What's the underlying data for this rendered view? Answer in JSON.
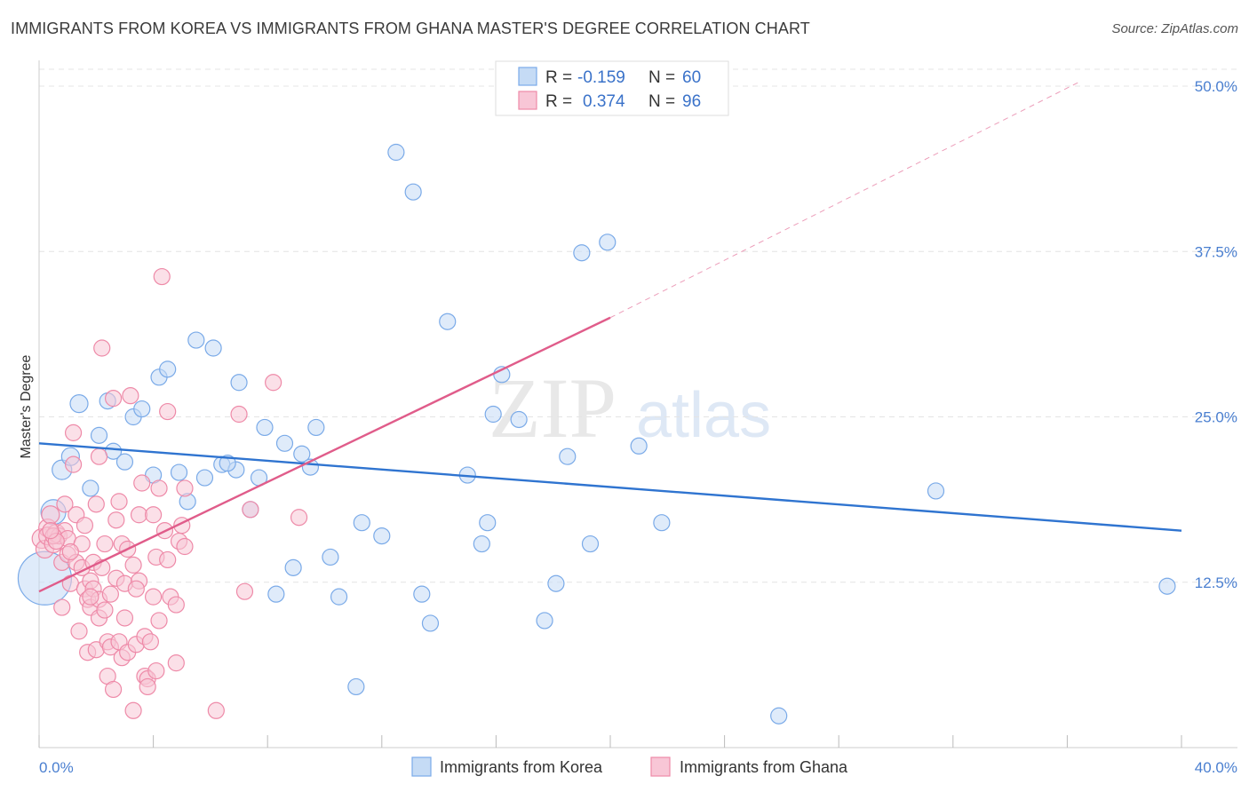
{
  "chart_data": {
    "type": "scatter",
    "title": "IMMIGRANTS FROM KOREA VS IMMIGRANTS FROM GHANA MASTER'S DEGREE CORRELATION CHART",
    "source": "Source: ZipAtlas.com",
    "xlabel": "",
    "ylabel": "Master's Degree",
    "xlim": [
      0,
      40
    ],
    "ylim": [
      0,
      50
    ],
    "x_tick_labels": [
      "0.0%",
      "40.0%"
    ],
    "y_ticks": [
      12.5,
      25.0,
      37.5,
      50.0
    ],
    "y_tick_labels": [
      "12.5%",
      "25.0%",
      "37.5%",
      "50.0%"
    ],
    "grid": true,
    "watermark": {
      "zip": "ZIP",
      "atlas": "atlas"
    },
    "legend": {
      "r_label": "R =",
      "n_label": "N =",
      "entries": [
        {
          "r": "-0.159",
          "n": "60"
        },
        {
          "r": "0.374",
          "n": "96"
        }
      ]
    },
    "series": [
      {
        "name": "Immigrants from Korea",
        "color": "#7aaae8",
        "fill": "#c5dbf5",
        "line_color": "#2f74d0",
        "trend": {
          "x0": 0,
          "y0": 23.0,
          "x1": 40,
          "y1": 16.4
        },
        "points": [
          [
            0.2,
            12.8,
            30
          ],
          [
            0.5,
            17.8,
            14
          ],
          [
            0.8,
            21.0,
            11
          ],
          [
            1.1,
            22.0,
            10
          ],
          [
            1.4,
            26.0,
            10
          ],
          [
            1.8,
            19.6,
            9
          ],
          [
            2.1,
            23.6,
            9
          ],
          [
            2.4,
            26.2,
            9
          ],
          [
            2.6,
            22.4,
            9
          ],
          [
            3.0,
            21.6,
            9
          ],
          [
            3.3,
            25.0,
            9
          ],
          [
            3.6,
            25.6,
            9
          ],
          [
            4.0,
            20.6,
            9
          ],
          [
            4.2,
            28.0,
            9
          ],
          [
            4.5,
            28.6,
            9
          ],
          [
            4.9,
            20.8,
            9
          ],
          [
            5.2,
            18.6,
            9
          ],
          [
            5.5,
            30.8,
            9
          ],
          [
            5.8,
            20.4,
            9
          ],
          [
            6.1,
            30.2,
            9
          ],
          [
            6.4,
            21.4,
            9
          ],
          [
            6.9,
            21.0,
            9
          ],
          [
            7.0,
            27.6,
            9
          ],
          [
            7.4,
            18.0,
            9
          ],
          [
            7.7,
            20.4,
            9
          ],
          [
            7.9,
            24.2,
            9
          ],
          [
            8.3,
            11.6,
            9
          ],
          [
            8.6,
            23.0,
            9
          ],
          [
            8.9,
            13.6,
            9
          ],
          [
            9.2,
            22.2,
            9
          ],
          [
            9.5,
            21.2,
            9
          ],
          [
            9.7,
            24.2,
            9
          ],
          [
            10.2,
            14.4,
            9
          ],
          [
            10.5,
            11.4,
            9
          ],
          [
            11.1,
            4.6,
            9
          ],
          [
            11.3,
            17.0,
            9
          ],
          [
            12.0,
            16.0,
            9
          ],
          [
            12.5,
            45.0,
            9
          ],
          [
            13.1,
            42.0,
            9
          ],
          [
            13.4,
            11.6,
            9
          ],
          [
            13.7,
            9.4,
            9
          ],
          [
            14.3,
            32.2,
            9
          ],
          [
            15.0,
            20.6,
            9
          ],
          [
            15.5,
            15.4,
            9
          ],
          [
            15.7,
            17.0,
            9
          ],
          [
            15.9,
            25.2,
            9
          ],
          [
            16.2,
            28.2,
            9
          ],
          [
            16.8,
            24.8,
            9
          ],
          [
            17.7,
            9.6,
            9
          ],
          [
            18.1,
            12.4,
            9
          ],
          [
            18.5,
            22.0,
            9
          ],
          [
            19.0,
            37.4,
            9
          ],
          [
            19.3,
            15.4,
            9
          ],
          [
            19.9,
            38.2,
            9
          ],
          [
            21.0,
            22.8,
            9
          ],
          [
            21.8,
            17.0,
            9
          ],
          [
            25.9,
            2.4,
            9
          ],
          [
            31.4,
            19.4,
            9
          ],
          [
            39.5,
            12.2,
            9
          ],
          [
            6.6,
            21.5,
            9
          ]
        ]
      },
      {
        "name": "Immigrants from Ghana",
        "color": "#ee8aa8",
        "fill": "#f8c6d6",
        "line_color": "#e05c8a",
        "trend": {
          "x0": 0,
          "y0": 11.8,
          "x1": 20,
          "y1": 32.5
        },
        "trend_dashed": {
          "x0": 20,
          "y0": 32.5,
          "x1": 36.5,
          "y1": 50.4
        },
        "points": [
          [
            0.1,
            15.8,
            11
          ],
          [
            0.2,
            15.0,
            10
          ],
          [
            0.3,
            16.6,
            10
          ],
          [
            0.3,
            16.0,
            10
          ],
          [
            0.4,
            17.6,
            10
          ],
          [
            0.5,
            15.4,
            10
          ],
          [
            0.6,
            16.2,
            10
          ],
          [
            0.7,
            16.0,
            9
          ],
          [
            0.8,
            14.0,
            9
          ],
          [
            0.8,
            10.6,
            9
          ],
          [
            0.9,
            16.4,
            9
          ],
          [
            0.9,
            18.4,
            9
          ],
          [
            1.0,
            15.8,
            9
          ],
          [
            1.0,
            14.6,
            9
          ],
          [
            1.1,
            12.4,
            9
          ],
          [
            1.2,
            21.4,
            9
          ],
          [
            1.2,
            23.8,
            9
          ],
          [
            1.3,
            17.6,
            9
          ],
          [
            1.3,
            14.0,
            9
          ],
          [
            1.4,
            8.8,
            9
          ],
          [
            1.5,
            15.4,
            9
          ],
          [
            1.5,
            13.6,
            9
          ],
          [
            1.6,
            16.8,
            9
          ],
          [
            1.6,
            12.0,
            9
          ],
          [
            1.7,
            11.2,
            9
          ],
          [
            1.7,
            7.2,
            9
          ],
          [
            1.8,
            12.6,
            9
          ],
          [
            1.8,
            10.6,
            9
          ],
          [
            1.9,
            14.0,
            9
          ],
          [
            1.9,
            12.0,
            9
          ],
          [
            2.0,
            18.4,
            9
          ],
          [
            2.0,
            7.4,
            9
          ],
          [
            2.1,
            11.2,
            9
          ],
          [
            2.1,
            9.8,
            9
          ],
          [
            2.2,
            30.2,
            9
          ],
          [
            2.2,
            13.6,
            9
          ],
          [
            2.3,
            15.4,
            9
          ],
          [
            2.3,
            10.4,
            9
          ],
          [
            2.4,
            5.4,
            9
          ],
          [
            2.4,
            8.0,
            9
          ],
          [
            2.5,
            11.6,
            9
          ],
          [
            2.5,
            7.6,
            9
          ],
          [
            2.6,
            26.4,
            9
          ],
          [
            2.6,
            4.4,
            9
          ],
          [
            2.7,
            17.2,
            9
          ],
          [
            2.7,
            12.8,
            9
          ],
          [
            2.8,
            18.6,
            9
          ],
          [
            2.8,
            8.0,
            9
          ],
          [
            2.9,
            15.4,
            9
          ],
          [
            2.9,
            6.8,
            9
          ],
          [
            3.0,
            12.4,
            9
          ],
          [
            3.0,
            9.8,
            9
          ],
          [
            3.1,
            7.2,
            9
          ],
          [
            3.1,
            15.0,
            9
          ],
          [
            3.2,
            26.6,
            9
          ],
          [
            3.3,
            13.8,
            9
          ],
          [
            3.3,
            2.8,
            9
          ],
          [
            3.4,
            7.8,
            9
          ],
          [
            3.5,
            17.6,
            9
          ],
          [
            3.5,
            12.6,
            9
          ],
          [
            3.6,
            20.0,
            9
          ],
          [
            3.7,
            8.4,
            9
          ],
          [
            3.7,
            5.4,
            9
          ],
          [
            3.8,
            5.2,
            9
          ],
          [
            3.8,
            4.6,
            9
          ],
          [
            3.9,
            8.0,
            9
          ],
          [
            4.0,
            17.6,
            9
          ],
          [
            4.0,
            11.4,
            9
          ],
          [
            4.1,
            14.4,
            9
          ],
          [
            4.1,
            5.8,
            9
          ],
          [
            4.2,
            19.6,
            9
          ],
          [
            4.2,
            9.6,
            9
          ],
          [
            4.3,
            35.6,
            9
          ],
          [
            4.4,
            16.4,
            9
          ],
          [
            4.5,
            14.2,
            9
          ],
          [
            4.5,
            25.4,
            9
          ],
          [
            4.6,
            11.4,
            9
          ],
          [
            4.8,
            10.8,
            9
          ],
          [
            4.8,
            6.4,
            9
          ],
          [
            4.9,
            15.6,
            9
          ],
          [
            5.0,
            16.8,
            9
          ],
          [
            5.1,
            15.2,
            9
          ],
          [
            5.1,
            19.6,
            9
          ],
          [
            6.2,
            2.8,
            9
          ],
          [
            7.0,
            25.2,
            9
          ],
          [
            7.2,
            11.8,
            9
          ],
          [
            7.4,
            18.0,
            9
          ],
          [
            8.2,
            27.6,
            9
          ],
          [
            9.1,
            17.4,
            9
          ],
          [
            0.5,
            16.0,
            9
          ],
          [
            0.6,
            15.6,
            9
          ],
          [
            1.1,
            14.8,
            9
          ],
          [
            0.4,
            16.4,
            9
          ],
          [
            2.1,
            22.0,
            9
          ],
          [
            3.4,
            12.0,
            9
          ],
          [
            1.8,
            11.4,
            9
          ]
        ]
      }
    ],
    "bottom_legend": [
      "Immigrants from Korea",
      "Immigrants from Ghana"
    ]
  }
}
